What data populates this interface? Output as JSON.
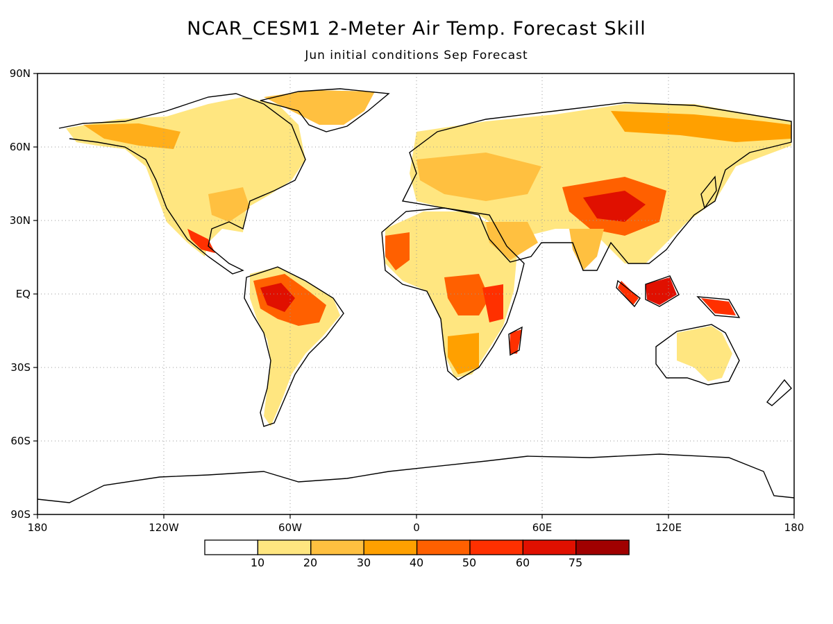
{
  "title": "NCAR_CESM1 2-Meter Air Temp. Forecast Skill",
  "subtitle": "Jun initial conditions  Sep Forecast",
  "map": {
    "lat_labels": [
      "90N",
      "60N",
      "30N",
      "EQ",
      "30S",
      "60S",
      "90S"
    ],
    "lon_labels": [
      "180",
      "120W",
      "60W",
      "0",
      "60E",
      "120E",
      "180"
    ],
    "grid": "dotted"
  },
  "colorbar": {
    "labels": [
      "10",
      "20",
      "30",
      "40",
      "50",
      "60",
      "75"
    ],
    "colors": [
      "#ffffff",
      "#ffe680",
      "#ffc040",
      "#ffa000",
      "#ff6000",
      "#ff3000",
      "#e01000",
      "#a00000"
    ]
  }
}
